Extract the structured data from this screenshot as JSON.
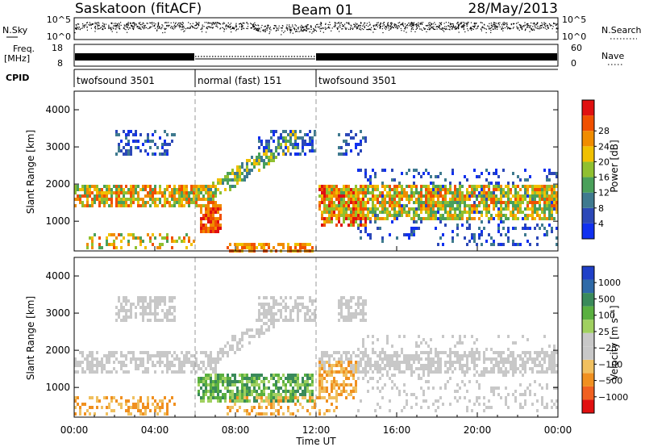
{
  "header": {
    "station": "Saskatoon (fitACF)",
    "beam": "Beam 01",
    "date": "28/May/2013"
  },
  "top_panels": {
    "nsky_label": "N.Sky",
    "nsky_ticks": [
      "10^5",
      "10^0"
    ],
    "nsearch_label": "N.Search",
    "nsearch_ticks": [
      "10^5",
      "10^0"
    ],
    "freq_label_1": "Freq.",
    "freq_label_2": "[MHz]",
    "freq_ticks": [
      "18",
      "8"
    ],
    "nave_label": "Nave",
    "nave_ticks": [
      "60",
      "0"
    ],
    "cpid_label": "CPID"
  },
  "cpid_segments": [
    {
      "label": "twofsound 3501",
      "start_hour": 0,
      "end_hour": 6
    },
    {
      "label": "normal (fast) 151",
      "start_hour": 6,
      "end_hour": 12
    },
    {
      "label": "twofsound 3501",
      "start_hour": 12,
      "end_hour": 24
    }
  ],
  "chart_data": [
    {
      "type": "heatmap",
      "panel": "power",
      "ylabel": "Slant Range [km]",
      "yticks": [
        "1000",
        "2000",
        "3000",
        "4000"
      ],
      "ylim": [
        200,
        4500
      ],
      "xlim": [
        0,
        24
      ],
      "colorbar_label": "Power [dB]",
      "colorbar_ticks": [
        "4",
        "8",
        "12",
        "16",
        "20",
        "24",
        "28"
      ],
      "colors": [
        "#1030f0",
        "#2c48b8",
        "#3f7a8f",
        "#4aa05a",
        "#90c030",
        "#f0c000",
        "#f08c00",
        "#f05000",
        "#e01010"
      ]
    },
    {
      "type": "heatmap",
      "panel": "velocity",
      "ylabel": "Slant Range [km]",
      "yticks": [
        "1000",
        "2000",
        "3000",
        "4000"
      ],
      "ylim": [
        200,
        4500
      ],
      "xlim": [
        0,
        24
      ],
      "xlabel": "Time UT",
      "xticks": [
        "00:00",
        "04:00",
        "08:00",
        "12:00",
        "16:00",
        "20:00",
        "00:00"
      ],
      "colorbar_label": "Velocity [m s⁻¹]",
      "colorbar_ticks": [
        "1000",
        "500",
        "100",
        "25",
        "−25",
        "−100",
        "−500",
        "−1000"
      ],
      "colors": [
        "#2040c8",
        "#2f6aa8",
        "#3a8a5a",
        "#5ab040",
        "#a0d060",
        "#c8c8c8",
        "#c8c8c8",
        "#f0c060",
        "#f09020",
        "#f06020",
        "#e01010"
      ]
    }
  ]
}
